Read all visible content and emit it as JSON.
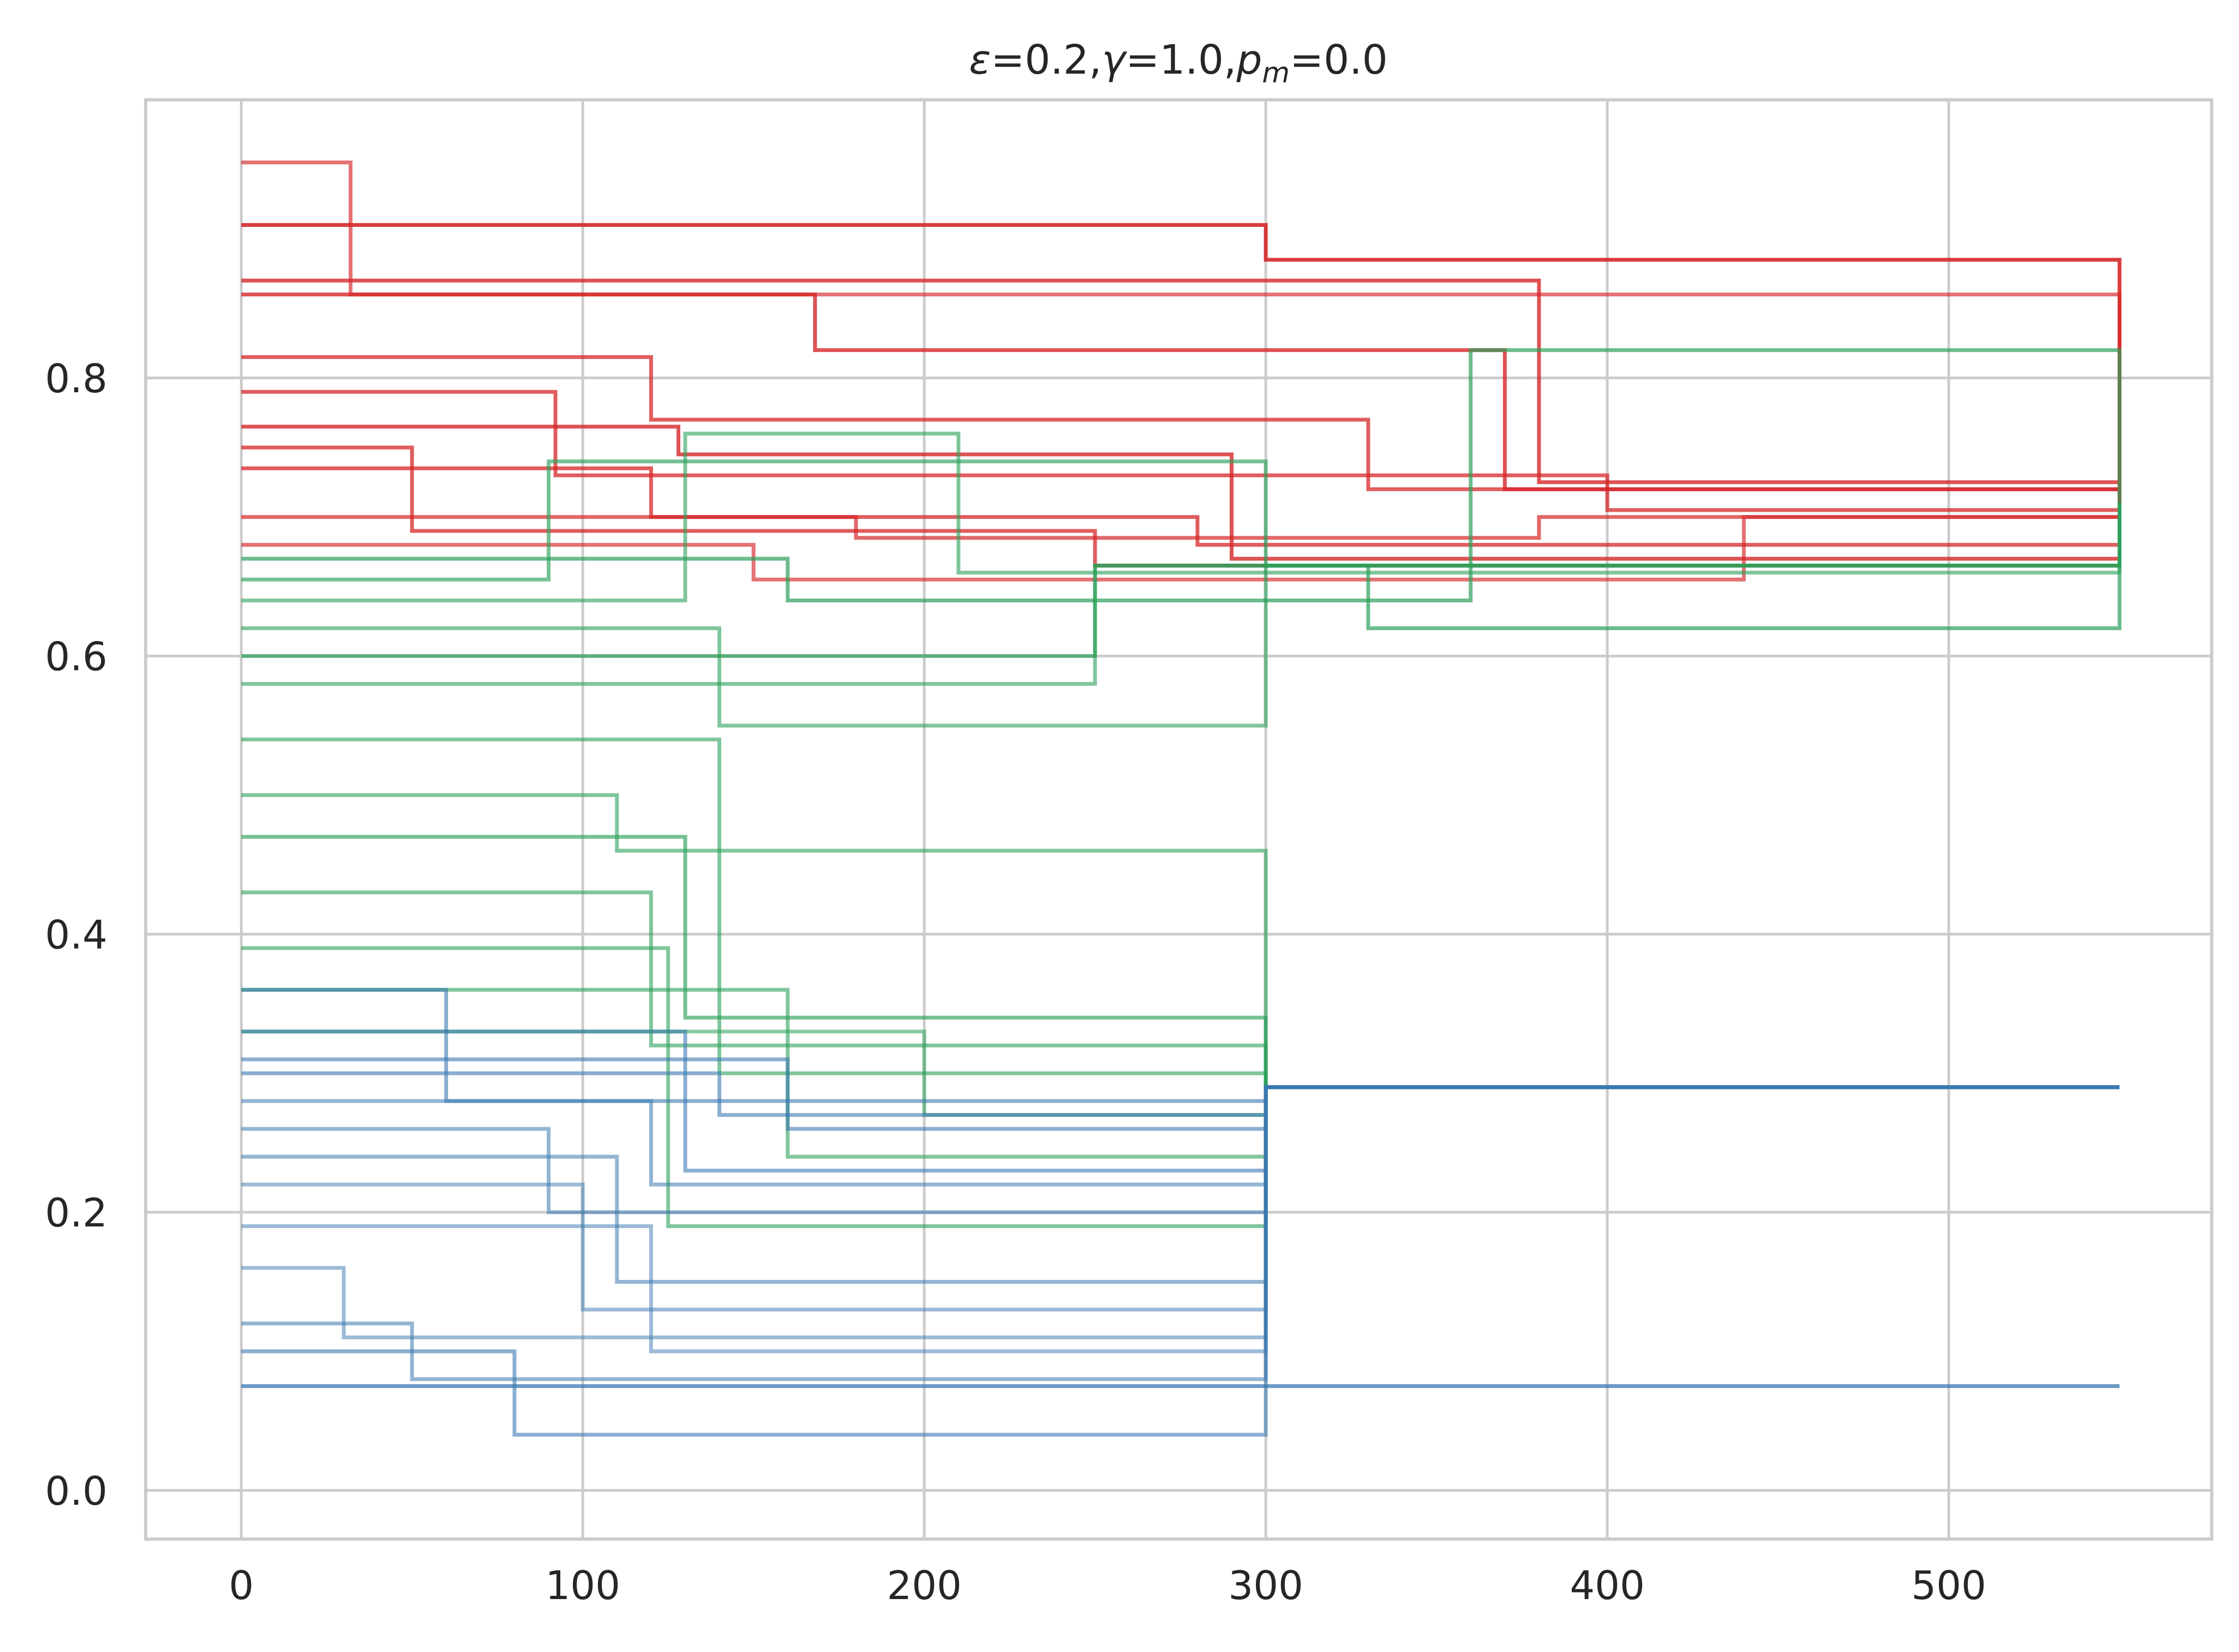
{
  "chart_data": {
    "type": "line",
    "title": {
      "parts": [
        {
          "text": "ε",
          "italic": true
        },
        {
          "text": "=0.2,",
          "italic": false
        },
        {
          "text": "γ",
          "italic": true
        },
        {
          "text": "=1.0,",
          "italic": false
        },
        {
          "text": "p",
          "italic": true
        },
        {
          "text": "m",
          "italic": true,
          "sub": true
        },
        {
          "text": "=0.0",
          "italic": false
        }
      ]
    },
    "xlabel": "",
    "ylabel": "",
    "xlim": [
      -28,
      577
    ],
    "ylim": [
      -0.035,
      1.0
    ],
    "xticks": [
      0,
      100,
      200,
      300,
      400,
      500
    ],
    "xtick_labels": [
      "0",
      "100",
      "200",
      "300",
      "400",
      "500"
    ],
    "yticks": [
      0.0,
      0.2,
      0.4,
      0.6,
      0.8
    ],
    "ytick_labels": [
      "0.0",
      "0.2",
      "0.4",
      "0.6",
      "0.8"
    ],
    "grid": true,
    "legend": "none",
    "colors": {
      "red": "#d62728",
      "green": "#2ca05a",
      "blue": "#3a78b0"
    },
    "series": [
      {
        "color": "red",
        "opacity": 0.65,
        "x": [
          0,
          28,
          32,
          550
        ],
        "y": [
          0.955,
          0.955,
          0.86,
          0.71
        ]
      },
      {
        "color": "red",
        "opacity": 0.9,
        "x": [
          0,
          288,
          300,
          550
        ],
        "y": [
          0.91,
          0.91,
          0.885,
          0.71
        ]
      },
      {
        "color": "red",
        "opacity": 0.8,
        "x": [
          0,
          36,
          380,
          550
        ],
        "y": [
          0.87,
          0.87,
          0.725,
          0.71
        ]
      },
      {
        "color": "red",
        "opacity": 0.8,
        "x": [
          0,
          100,
          168,
          370,
          550
        ],
        "y": [
          0.86,
          0.86,
          0.82,
          0.72,
          0.71
        ]
      },
      {
        "color": "red",
        "opacity": 0.75,
        "x": [
          0,
          92,
          120,
          330,
          550
        ],
        "y": [
          0.815,
          0.815,
          0.77,
          0.72,
          0.71
        ]
      },
      {
        "color": "red",
        "opacity": 0.75,
        "x": [
          0,
          88,
          92,
          400,
          550
        ],
        "y": [
          0.79,
          0.79,
          0.73,
          0.705,
          0.71
        ]
      },
      {
        "color": "red",
        "opacity": 0.8,
        "x": [
          0,
          120,
          128,
          290,
          550
        ],
        "y": [
          0.765,
          0.765,
          0.745,
          0.67,
          0.71
        ]
      },
      {
        "color": "red",
        "opacity": 0.75,
        "x": [
          0,
          20,
          50,
          250,
          550
        ],
        "y": [
          0.75,
          0.75,
          0.69,
          0.665,
          0.71
        ]
      },
      {
        "color": "red",
        "opacity": 0.75,
        "x": [
          0,
          50,
          120,
          280,
          550
        ],
        "y": [
          0.735,
          0.735,
          0.7,
          0.68,
          0.71
        ]
      },
      {
        "color": "red",
        "opacity": 0.7,
        "x": [
          0,
          60,
          180,
          380,
          550
        ],
        "y": [
          0.7,
          0.7,
          0.685,
          0.7,
          0.71
        ]
      },
      {
        "color": "red",
        "opacity": 0.65,
        "x": [
          0,
          40,
          150,
          440,
          550
        ],
        "y": [
          0.68,
          0.68,
          0.655,
          0.7,
          0.71
        ]
      },
      {
        "color": "green",
        "opacity": 0.7,
        "x": [
          0,
          10,
          160,
          360,
          550
        ],
        "y": [
          0.67,
          0.67,
          0.64,
          0.82,
          0.71
        ]
      },
      {
        "color": "green",
        "opacity": 0.65,
        "x": [
          0,
          22,
          90,
          300,
          550
        ],
        "y": [
          0.655,
          0.655,
          0.74,
          0.665,
          0.71
        ]
      },
      {
        "color": "green",
        "opacity": 0.6,
        "x": [
          0,
          30,
          130,
          210,
          550
        ],
        "y": [
          0.64,
          0.64,
          0.76,
          0.66,
          0.71
        ]
      },
      {
        "color": "green",
        "opacity": 0.6,
        "x": [
          0,
          100,
          140,
          285,
          300,
          550
        ],
        "y": [
          0.62,
          0.62,
          0.55,
          0.55,
          0.665,
          0.71
        ]
      },
      {
        "color": "green",
        "opacity": 0.7,
        "x": [
          0,
          60,
          250,
          330,
          550
        ],
        "y": [
          0.6,
          0.6,
          0.665,
          0.62,
          0.71
        ]
      },
      {
        "color": "green",
        "opacity": 0.6,
        "x": [
          0,
          35,
          250,
          550
        ],
        "y": [
          0.58,
          0.58,
          0.665,
          0.71
        ]
      },
      {
        "color": "green",
        "opacity": 0.6,
        "x": [
          0,
          30,
          140,
          300,
          550
        ],
        "y": [
          0.54,
          0.54,
          0.3,
          0.29,
          0.29
        ]
      },
      {
        "color": "green",
        "opacity": 0.6,
        "x": [
          0,
          20,
          110,
          300,
          550
        ],
        "y": [
          0.5,
          0.5,
          0.46,
          0.29,
          0.29
        ]
      },
      {
        "color": "green",
        "opacity": 0.65,
        "x": [
          0,
          40,
          130,
          300,
          550
        ],
        "y": [
          0.47,
          0.47,
          0.34,
          0.29,
          0.29
        ]
      },
      {
        "color": "green",
        "opacity": 0.6,
        "x": [
          0,
          50,
          120,
          300,
          550
        ],
        "y": [
          0.43,
          0.43,
          0.32,
          0.29,
          0.29
        ]
      },
      {
        "color": "green",
        "opacity": 0.6,
        "x": [
          0,
          70,
          125,
          300,
          550
        ],
        "y": [
          0.39,
          0.39,
          0.19,
          0.29,
          0.29
        ]
      },
      {
        "color": "green",
        "opacity": 0.6,
        "x": [
          0,
          30,
          160,
          300,
          550
        ],
        "y": [
          0.36,
          0.36,
          0.24,
          0.29,
          0.29
        ]
      },
      {
        "color": "green",
        "opacity": 0.55,
        "x": [
          0,
          80,
          200,
          300,
          550
        ],
        "y": [
          0.33,
          0.33,
          0.27,
          0.29,
          0.29
        ]
      },
      {
        "color": "blue",
        "opacity": 0.6,
        "x": [
          0,
          40,
          60,
          300,
          550
        ],
        "y": [
          0.36,
          0.36,
          0.28,
          0.29,
          0.29
        ]
      },
      {
        "color": "blue",
        "opacity": 0.6,
        "x": [
          0,
          25,
          130,
          300,
          550
        ],
        "y": [
          0.33,
          0.33,
          0.23,
          0.29,
          0.29
        ]
      },
      {
        "color": "blue",
        "opacity": 0.6,
        "x": [
          0,
          15,
          160,
          300,
          550
        ],
        "y": [
          0.31,
          0.31,
          0.26,
          0.29,
          0.29
        ]
      },
      {
        "color": "blue",
        "opacity": 0.6,
        "x": [
          0,
          5,
          140,
          300,
          550
        ],
        "y": [
          0.3,
          0.3,
          0.27,
          0.29,
          0.29
        ]
      },
      {
        "color": "blue",
        "opacity": 0.55,
        "x": [
          0,
          30,
          120,
          300,
          550
        ],
        "y": [
          0.28,
          0.28,
          0.22,
          0.29,
          0.29
        ]
      },
      {
        "color": "blue",
        "opacity": 0.55,
        "x": [
          0,
          20,
          90,
          300,
          550
        ],
        "y": [
          0.26,
          0.26,
          0.2,
          0.29,
          0.29
        ]
      },
      {
        "color": "blue",
        "opacity": 0.55,
        "x": [
          0,
          40,
          110,
          300,
          550
        ],
        "y": [
          0.24,
          0.24,
          0.15,
          0.29,
          0.29
        ]
      },
      {
        "color": "blue",
        "opacity": 0.5,
        "x": [
          0,
          30,
          100,
          300,
          550
        ],
        "y": [
          0.22,
          0.22,
          0.13,
          0.29,
          0.29
        ]
      },
      {
        "color": "blue",
        "opacity": 0.5,
        "x": [
          0,
          20,
          120,
          300,
          550
        ],
        "y": [
          0.19,
          0.19,
          0.1,
          0.29,
          0.29
        ]
      },
      {
        "color": "blue",
        "opacity": 0.5,
        "x": [
          0,
          10,
          30,
          300,
          550
        ],
        "y": [
          0.16,
          0.16,
          0.11,
          0.29,
          0.29
        ]
      },
      {
        "color": "blue",
        "opacity": 0.55,
        "x": [
          0,
          5,
          50,
          300,
          550
        ],
        "y": [
          0.12,
          0.12,
          0.08,
          0.29,
          0.29
        ]
      },
      {
        "color": "blue",
        "opacity": 0.6,
        "x": [
          0,
          50,
          80,
          300,
          550
        ],
        "y": [
          0.1,
          0.1,
          0.04,
          0.29,
          0.29
        ]
      },
      {
        "color": "blue",
        "opacity": 0.75,
        "x": [
          0,
          30,
          52,
          550
        ],
        "y": [
          0.075,
          0.075,
          0.075,
          0.075
        ]
      }
    ]
  }
}
